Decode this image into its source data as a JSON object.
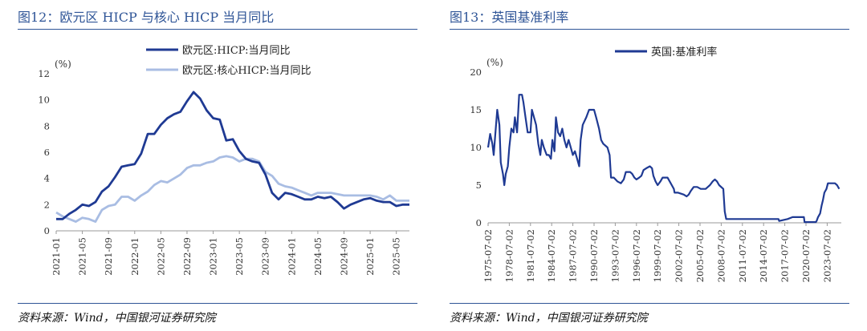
{
  "charts": [
    {
      "fig_title": "图12：欧元区 HICP 与核心 HICP 当月同比",
      "source": "资料来源：Wind，中国银河证券研究院",
      "chart_data": {
        "type": "line",
        "unit": "(%)",
        "ylim": [
          0,
          12
        ],
        "yticks": [
          0,
          2,
          4,
          6,
          8,
          10,
          12
        ],
        "x_tick_labels": [
          "2021-01",
          "2021-05",
          "2021-09",
          "2022-01",
          "2022-05",
          "2022-09",
          "2023-01",
          "2023-05",
          "2023-09",
          "2024-01",
          "2024-05",
          "2024-09",
          "2025-01",
          "2025-05"
        ],
        "x_start": "2021-01",
        "x_end": "2025-07",
        "legend_position": "top-center",
        "series": [
          {
            "name": "欧元区:HICP:当月同比",
            "color": "#1f3a93",
            "values": [
              0.9,
              0.9,
              1.3,
              1.6,
              2.0,
              1.9,
              2.2,
              3.0,
              3.4,
              4.1,
              4.9,
              5.0,
              5.1,
              5.9,
              7.4,
              7.4,
              8.1,
              8.6,
              8.9,
              9.1,
              9.9,
              10.6,
              10.1,
              9.2,
              8.6,
              8.5,
              6.9,
              7.0,
              6.1,
              5.5,
              5.3,
              5.2,
              4.3,
              2.9,
              2.4,
              2.9,
              2.8,
              2.6,
              2.4,
              2.4,
              2.6,
              2.5,
              2.6,
              2.2,
              1.7,
              2.0,
              2.2,
              2.4,
              2.5,
              2.3,
              2.2,
              2.2,
              1.9,
              2.0,
              2.0
            ]
          },
          {
            "name": "欧元区:核心HICP:当月同比",
            "color": "#a9bde3",
            "values": [
              1.4,
              1.1,
              0.9,
              0.7,
              1.0,
              0.9,
              0.7,
              1.6,
              1.9,
              2.0,
              2.6,
              2.6,
              2.3,
              2.7,
              3.0,
              3.5,
              3.8,
              3.7,
              4.0,
              4.3,
              4.8,
              5.0,
              5.0,
              5.2,
              5.3,
              5.6,
              5.7,
              5.6,
              5.3,
              5.5,
              5.5,
              5.3,
              4.5,
              4.2,
              3.6,
              3.4,
              3.3,
              3.1,
              2.9,
              2.7,
              2.9,
              2.9,
              2.9,
              2.8,
              2.7,
              2.7,
              2.7,
              2.7,
              2.7,
              2.6,
              2.4,
              2.7,
              2.3,
              2.3,
              2.3
            ]
          }
        ]
      }
    },
    {
      "fig_title": "图13：英国基准利率",
      "source": "资料来源：Wind，中国银河证券研究院",
      "chart_data": {
        "type": "line",
        "unit": "(%)",
        "ylim": [
          0,
          20
        ],
        "yticks": [
          0,
          5,
          10,
          15,
          20
        ],
        "x_tick_labels": [
          "1975-07-02",
          "1978-07-02",
          "1981-07-02",
          "1984-07-02",
          "1987-07-02",
          "1990-07-02",
          "1993-07-02",
          "1996-07-02",
          "1999-07-02",
          "2002-07-02",
          "2005-07-02",
          "2008-07-02",
          "2011-07-02",
          "2014-07-02",
          "2017-07-02",
          "2020-07-02",
          "2023-07-02"
        ],
        "x_range": [
          1975.5,
          2025.5
        ],
        "legend_position": "top-center",
        "series": [
          {
            "name": "英国:基准利率",
            "color": "#1f3a93",
            "points": [
              [
                1975.5,
                10.0
              ],
              [
                1975.8,
                11.8
              ],
              [
                1976.1,
                10.5
              ],
              [
                1976.3,
                9.0
              ],
              [
                1976.5,
                11.5
              ],
              [
                1976.8,
                15.0
              ],
              [
                1977.1,
                13.0
              ],
              [
                1977.3,
                8.0
              ],
              [
                1977.6,
                6.5
              ],
              [
                1977.8,
                5.0
              ],
              [
                1978.0,
                6.5
              ],
              [
                1978.3,
                7.5
              ],
              [
                1978.5,
                10.0
              ],
              [
                1978.8,
                12.5
              ],
              [
                1979.1,
                12.0
              ],
              [
                1979.3,
                14.0
              ],
              [
                1979.6,
                12.0
              ],
              [
                1979.9,
                17.0
              ],
              [
                1980.3,
                17.0
              ],
              [
                1980.5,
                16.0
              ],
              [
                1980.8,
                14.0
              ],
              [
                1981.1,
                12.0
              ],
              [
                1981.5,
                12.0
              ],
              [
                1981.7,
                15.0
              ],
              [
                1982.0,
                14.0
              ],
              [
                1982.3,
                13.0
              ],
              [
                1982.6,
                10.5
              ],
              [
                1982.9,
                9.0
              ],
              [
                1983.1,
                11.0
              ],
              [
                1983.4,
                10.0
              ],
              [
                1983.8,
                9.0
              ],
              [
                1984.1,
                9.0
              ],
              [
                1984.4,
                8.5
              ],
              [
                1984.6,
                11.0
              ],
              [
                1984.9,
                9.5
              ],
              [
                1985.1,
                14.0
              ],
              [
                1985.4,
                12.0
              ],
              [
                1985.7,
                11.5
              ],
              [
                1986.0,
                12.5
              ],
              [
                1986.3,
                11.0
              ],
              [
                1986.6,
                10.0
              ],
              [
                1986.9,
                11.0
              ],
              [
                1987.2,
                10.0
              ],
              [
                1987.5,
                9.0
              ],
              [
                1987.8,
                9.5
              ],
              [
                1988.1,
                8.5
              ],
              [
                1988.4,
                7.5
              ],
              [
                1988.6,
                11.0
              ],
              [
                1988.9,
                13.0
              ],
              [
                1989.4,
                14.0
              ],
              [
                1989.8,
                15.0
              ],
              [
                1990.5,
                15.0
              ],
              [
                1990.8,
                14.0
              ],
              [
                1991.2,
                12.5
              ],
              [
                1991.5,
                11.0
              ],
              [
                1991.8,
                10.5
              ],
              [
                1992.4,
                10.0
              ],
              [
                1992.7,
                9.0
              ],
              [
                1992.9,
                6.0
              ],
              [
                1993.3,
                6.0
              ],
              [
                1993.8,
                5.5
              ],
              [
                1994.3,
                5.25
              ],
              [
                1994.7,
                5.75
              ],
              [
                1995.0,
                6.75
              ],
              [
                1995.6,
                6.75
              ],
              [
                1995.9,
                6.5
              ],
              [
                1996.2,
                6.0
              ],
              [
                1996.5,
                5.75
              ],
              [
                1996.9,
                6.0
              ],
              [
                1997.2,
                6.25
              ],
              [
                1997.5,
                7.0
              ],
              [
                1997.9,
                7.25
              ],
              [
                1998.4,
                7.5
              ],
              [
                1998.7,
                7.25
              ],
              [
                1998.9,
                6.25
              ],
              [
                1999.2,
                5.5
              ],
              [
                1999.5,
                5.0
              ],
              [
                1999.9,
                5.5
              ],
              [
                2000.2,
                6.0
              ],
              [
                2000.9,
                6.0
              ],
              [
                2001.2,
                5.5
              ],
              [
                2001.5,
                5.0
              ],
              [
                2001.8,
                4.5
              ],
              [
                2001.9,
                4.0
              ],
              [
                2002.4,
                4.0
              ],
              [
                2003.2,
                3.75
              ],
              [
                2003.6,
                3.5
              ],
              [
                2003.9,
                3.75
              ],
              [
                2004.2,
                4.25
              ],
              [
                2004.6,
                4.75
              ],
              [
                2005.1,
                4.75
              ],
              [
                2005.6,
                4.5
              ],
              [
                2006.3,
                4.5
              ],
              [
                2006.6,
                4.75
              ],
              [
                2006.9,
                5.0
              ],
              [
                2007.3,
                5.5
              ],
              [
                2007.6,
                5.75
              ],
              [
                2007.9,
                5.5
              ],
              [
                2008.2,
                5.0
              ],
              [
                2008.8,
                4.5
              ],
              [
                2008.9,
                3.0
              ],
              [
                2009.0,
                1.5
              ],
              [
                2009.2,
                0.5
              ],
              [
                2016.6,
                0.5
              ],
              [
                2016.7,
                0.25
              ],
              [
                2017.9,
                0.5
              ],
              [
                2018.6,
                0.75
              ],
              [
                2020.2,
                0.75
              ],
              [
                2020.3,
                0.1
              ],
              [
                2021.9,
                0.1
              ],
              [
                2022.0,
                0.25
              ],
              [
                2022.2,
                0.75
              ],
              [
                2022.5,
                1.25
              ],
              [
                2022.7,
                2.25
              ],
              [
                2022.9,
                3.0
              ],
              [
                2023.1,
                4.0
              ],
              [
                2023.4,
                4.5
              ],
              [
                2023.6,
                5.25
              ],
              [
                2024.6,
                5.25
              ],
              [
                2024.9,
                5.0
              ],
              [
                2025.2,
                4.5
              ]
            ]
          }
        ]
      }
    }
  ]
}
